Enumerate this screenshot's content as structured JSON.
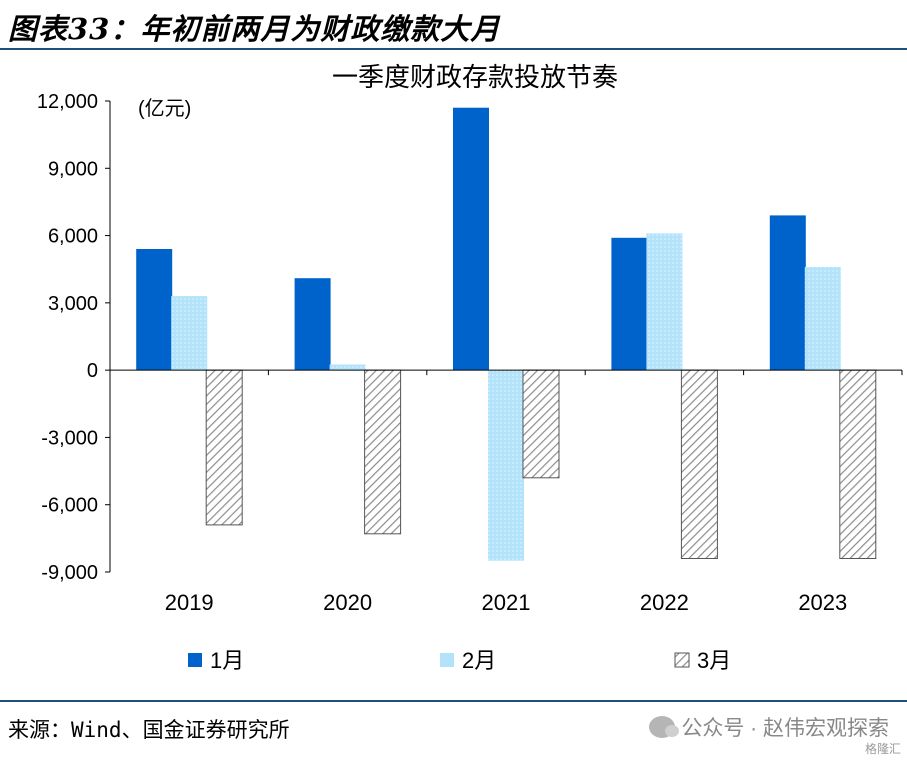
{
  "figure": {
    "title": "图表33：年初前两月为财政缴款大月",
    "source": "来源：Wind、国金证券研究所",
    "watermark": "公众号 · 赵伟宏观探索",
    "watermark_corner": "格隆汇"
  },
  "colors": {
    "jan": "#0063cc",
    "feb": "#b3e3fb",
    "mar_stroke": "#8c8c8c",
    "rule": "#1f4e79"
  },
  "chart_data": {
    "type": "bar",
    "title": "一季度财政存款投放节奏",
    "unit_label": "(亿元)",
    "categories": [
      "2019",
      "2020",
      "2021",
      "2022",
      "2023"
    ],
    "series": [
      {
        "name": "1月",
        "values": [
          5400,
          4100,
          11700,
          5900,
          6900
        ]
      },
      {
        "name": "2月",
        "values": [
          3300,
          250,
          -8500,
          6100,
          4600
        ]
      },
      {
        "name": "3月",
        "values": [
          -6900,
          -7300,
          -4800,
          -8400,
          -8400
        ]
      }
    ],
    "ylim": [
      -9000,
      12000
    ],
    "yticks": [
      12000,
      9000,
      6000,
      3000,
      0,
      -3000,
      -6000,
      -9000
    ],
    "ytick_labels": [
      "12,000",
      "9,000",
      "6,000",
      "3,000",
      "0",
      "-3,000",
      "-6,000",
      "-9,000"
    ],
    "legend_position": "bottom",
    "grid": false
  }
}
